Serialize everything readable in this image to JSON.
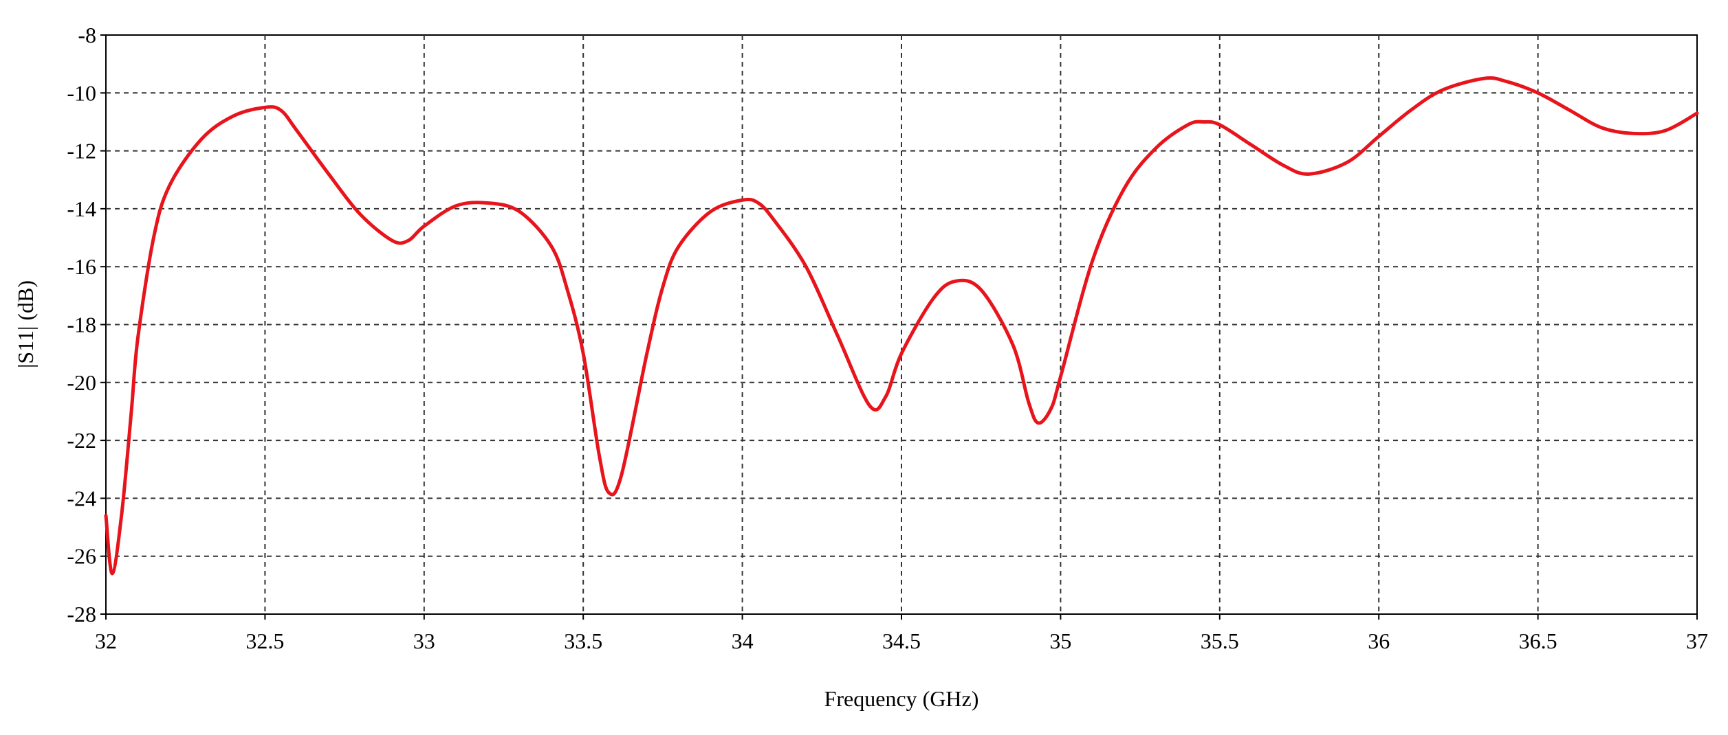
{
  "chart_data": {
    "type": "line",
    "x_label": "Frequency (GHz)",
    "y_label": "|S11| (dB)",
    "xlim": [
      32,
      37
    ],
    "ylim": [
      -28,
      -8
    ],
    "xticks": [
      32,
      32.5,
      33,
      33.5,
      34,
      34.5,
      35,
      35.5,
      36,
      36.5,
      37
    ],
    "yticks": [
      -28,
      -26,
      -24,
      -22,
      -20,
      -18,
      -16,
      -14,
      -12,
      -10,
      -8
    ],
    "grid": true,
    "series": [
      {
        "color": "#e8141c",
        "x": [
          32.0,
          32.02,
          32.05,
          32.08,
          32.1,
          32.15,
          32.2,
          32.3,
          32.4,
          32.5,
          32.55,
          32.6,
          32.7,
          32.8,
          32.9,
          32.95,
          33.0,
          33.1,
          33.2,
          33.3,
          33.4,
          33.45,
          33.5,
          33.55,
          33.58,
          33.62,
          33.7,
          33.75,
          33.8,
          33.9,
          34.0,
          34.05,
          34.1,
          34.2,
          34.3,
          34.4,
          34.45,
          34.5,
          34.6,
          34.67,
          34.75,
          34.85,
          34.9,
          34.93,
          34.97,
          35.0,
          35.1,
          35.2,
          35.3,
          35.4,
          35.45,
          35.5,
          35.6,
          35.7,
          35.78,
          35.9,
          36.0,
          36.1,
          36.2,
          36.33,
          36.4,
          36.5,
          36.6,
          36.7,
          36.8,
          36.9,
          37.0
        ],
        "values": [
          -24.6,
          -26.6,
          -24.5,
          -21,
          -18.5,
          -15,
          -13.2,
          -11.6,
          -10.8,
          -10.5,
          -10.6,
          -11.3,
          -12.8,
          -14.2,
          -15.1,
          -15.1,
          -14.6,
          -13.9,
          -13.8,
          -14.1,
          -15.3,
          -16.8,
          -19,
          -22.5,
          -23.8,
          -23.2,
          -19,
          -16.7,
          -15.3,
          -14.1,
          -13.7,
          -13.8,
          -14.4,
          -16,
          -18.4,
          -20.8,
          -20.5,
          -19,
          -17.1,
          -16.5,
          -16.8,
          -18.7,
          -20.7,
          -21.4,
          -20.9,
          -19.8,
          -15.8,
          -13.3,
          -11.9,
          -11.1,
          -11.0,
          -11.1,
          -11.8,
          -12.5,
          -12.8,
          -12.4,
          -11.5,
          -10.6,
          -9.9,
          -9.5,
          -9.6,
          -10,
          -10.6,
          -11.2,
          -11.4,
          -11.3,
          -10.7
        ]
      }
    ]
  }
}
